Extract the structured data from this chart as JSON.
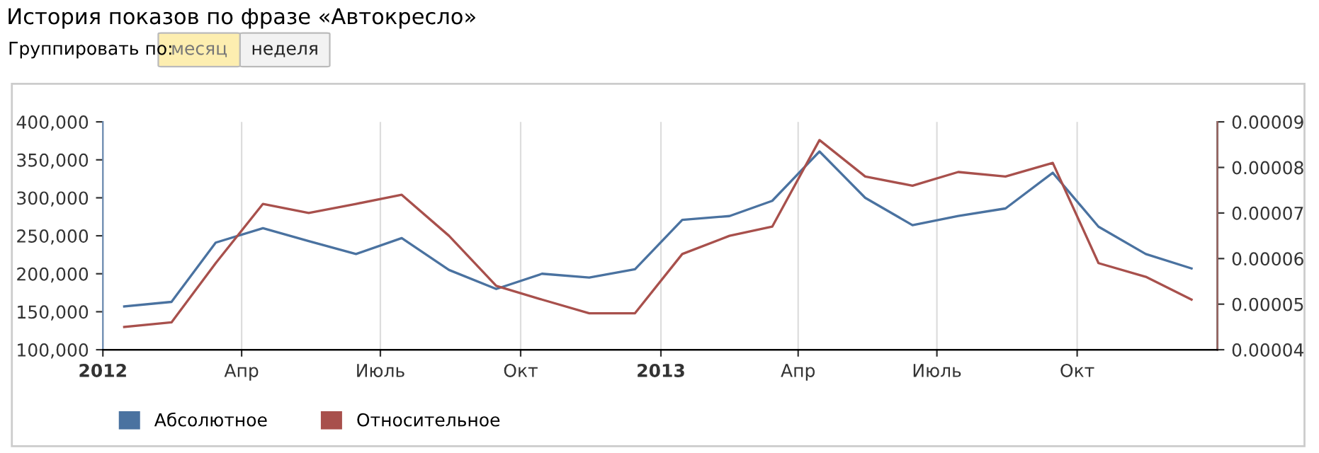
{
  "chart_data": {
    "type": "line",
    "title": "История показов по фразе «Автокресло»",
    "annotations": [
      "Группировать по:",
      "месяц",
      "неделя"
    ],
    "x": [
      "2012-01-15",
      "2012-02-15",
      "2012-03-15",
      "2012-04-15",
      "2012-05-15",
      "2012-06-15",
      "2012-07-15",
      "2012-08-15",
      "2012-09-15",
      "2012-10-15",
      "2012-11-15",
      "2012-12-15",
      "2013-01-15",
      "2013-02-15",
      "2013-03-15",
      "2013-04-15",
      "2013-05-15",
      "2013-06-15",
      "2013-07-15",
      "2013-08-15",
      "2013-09-15",
      "2013-10-15",
      "2013-11-15",
      "2013-12-15"
    ],
    "series": [
      {
        "name": "Абсолютное",
        "color": "#4a72a0",
        "values": [
          157000,
          163000,
          241000,
          260000,
          243000,
          226000,
          247000,
          205000,
          180000,
          200000,
          195000,
          206000,
          271000,
          276000,
          296000,
          361000,
          300000,
          264000,
          276000,
          286000,
          333000,
          262000,
          226000,
          207000
        ]
      },
      {
        "name": "Относительное",
        "color": "#a8504c",
        "axis": "y2",
        "values": [
          4.5e-05,
          4.6e-05,
          5.9e-05,
          7.2e-05,
          7e-05,
          7.2e-05,
          7.4e-05,
          6.5e-05,
          5.4e-05,
          5.1e-05,
          4.8e-05,
          4.8e-05,
          6.1e-05,
          6.5e-05,
          6.7e-05,
          8.6e-05,
          7.8e-05,
          7.6e-05,
          7.9e-05,
          7.8e-05,
          8.1e-05,
          5.9e-05,
          5.6e-05,
          5.1e-05
        ]
      }
    ],
    "xlim": [
      "2012-01-01",
      "2014-01-01"
    ],
    "xticks": [
      {
        "value": "2012-01-01",
        "label": "2012"
      },
      {
        "value": "2012-04-01",
        "label": "Апр"
      },
      {
        "value": "2012-07-01",
        "label": "Июль"
      },
      {
        "value": "2012-10-01",
        "label": "Окт"
      },
      {
        "value": "2013-01-01",
        "label": "2013"
      },
      {
        "value": "2013-04-01",
        "label": "Апр"
      },
      {
        "value": "2013-07-01",
        "label": "Июль"
      },
      {
        "value": "2013-10-01",
        "label": "Окт"
      }
    ],
    "ylim": [
      100000,
      400000
    ],
    "yticks": [
      {
        "value": 100000,
        "label": "100,000"
      },
      {
        "value": 150000,
        "label": "150,000"
      },
      {
        "value": 200000,
        "label": "200,000"
      },
      {
        "value": 250000,
        "label": "250,000"
      },
      {
        "value": 300000,
        "label": "300,000"
      },
      {
        "value": 350000,
        "label": "350,000"
      },
      {
        "value": 400000,
        "label": "400,000"
      }
    ],
    "y2lim": [
      4e-05,
      9e-05
    ],
    "y2ticks": [
      {
        "value": 4e-05,
        "label": "0.00004"
      },
      {
        "value": 5e-05,
        "label": "0.00005"
      },
      {
        "value": 6e-05,
        "label": "0.00006"
      },
      {
        "value": 7e-05,
        "label": "0.00007"
      },
      {
        "value": 8e-05,
        "label": "0.00008"
      },
      {
        "value": 9e-05,
        "label": "0.00009"
      }
    ],
    "grid": "x",
    "legend": "bottom left",
    "marker": "none",
    "line_style": "solid"
  }
}
